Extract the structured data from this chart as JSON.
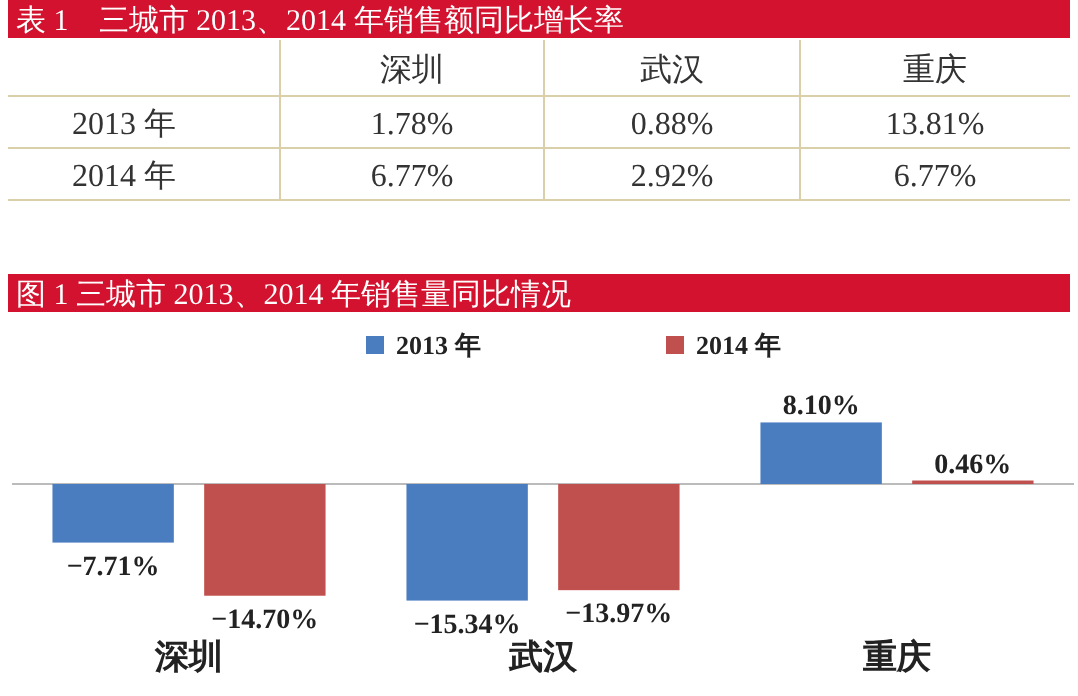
{
  "chart_data": [
    {
      "type": "other",
      "title": "表 1　三城市 2013、2014 年销售额同比增长率",
      "categories": [
        "深圳",
        "武汉",
        "重庆"
      ],
      "series": [
        {
          "name": "2013 年",
          "values": [
            1.78,
            0.88,
            13.81
          ],
          "value_labels": [
            "1.78%",
            "0.88%",
            "13.81%"
          ]
        },
        {
          "name": "2014 年",
          "values": [
            6.77,
            2.92,
            6.77
          ],
          "value_labels": [
            "6.77%",
            "2.92%",
            "6.77%"
          ]
        }
      ]
    },
    {
      "type": "bar",
      "title": "图 1  三城市 2013、2014 年销售量同比情况",
      "categories": [
        "深圳",
        "武汉",
        "重庆"
      ],
      "legend": "top",
      "series": [
        {
          "name": "2013 年",
          "color": "#4a7cc0",
          "values": [
            -7.71,
            -15.34,
            8.1
          ],
          "value_labels": [
            "−7.71%",
            "−15.34%",
            "8.10%"
          ]
        },
        {
          "name": "2014 年",
          "color": "#c0504d",
          "values": [
            -14.7,
            -13.97,
            0.46
          ],
          "value_labels": [
            "−14.70%",
            "−13.97%",
            "0.46%"
          ]
        }
      ]
    }
  ]
}
